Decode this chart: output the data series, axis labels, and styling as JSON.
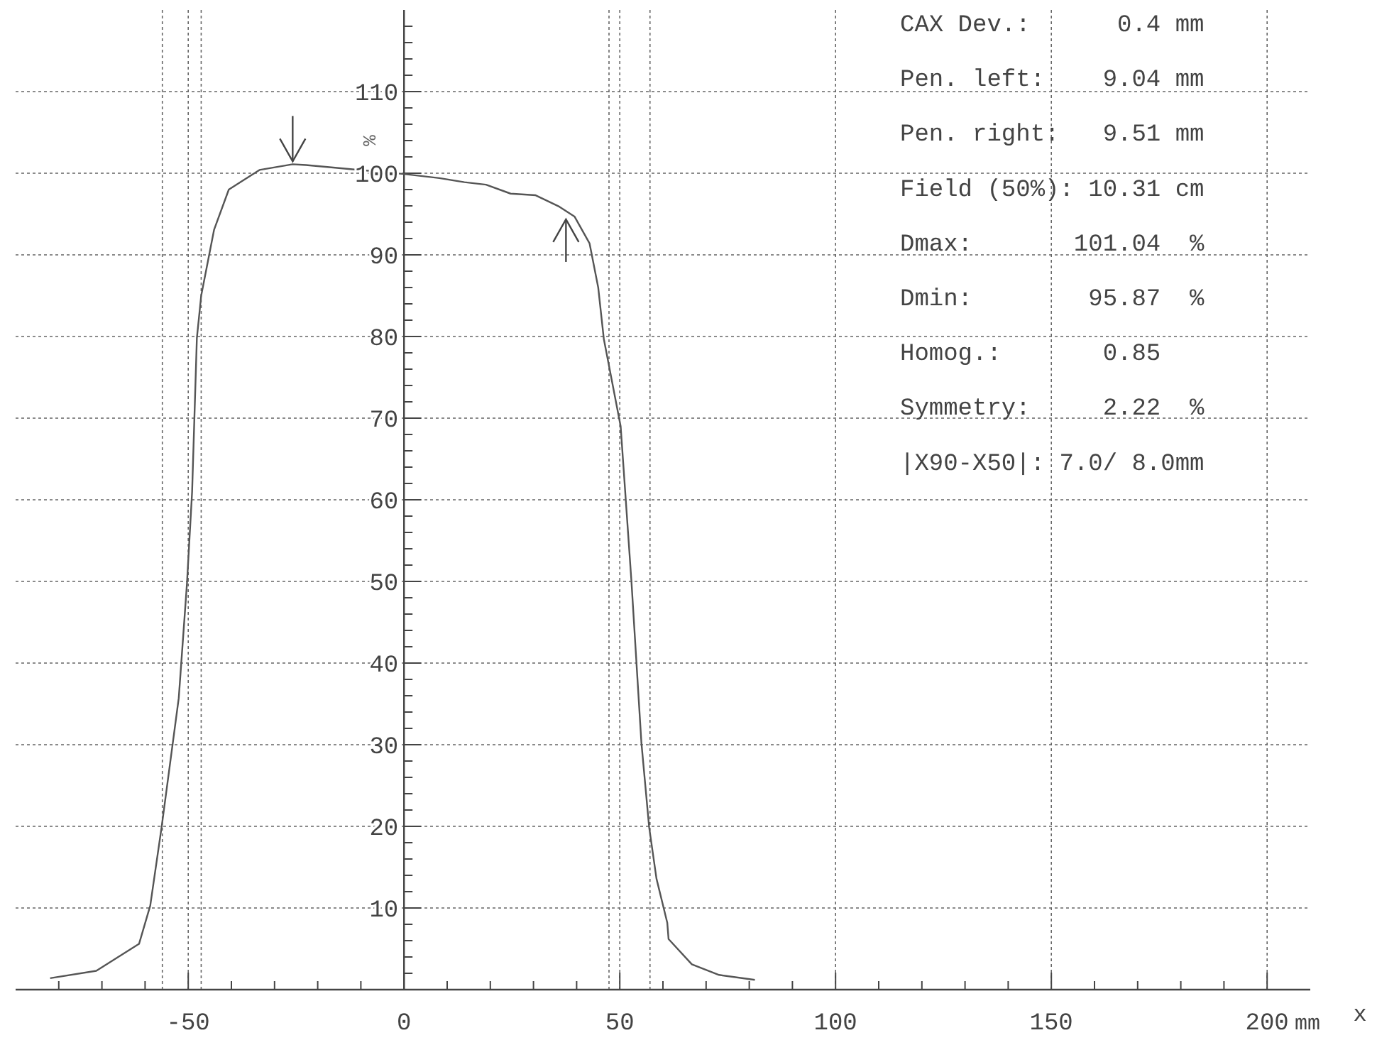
{
  "chart_data": {
    "type": "line",
    "xlabel": "x",
    "ylabel": "%",
    "x": [
      -82,
      -71.3,
      -61.4,
      -58.8,
      -56.2,
      -52.2,
      -50.3,
      -49.1,
      -48,
      -47,
      -44,
      -40.6,
      -33.5,
      -25.8,
      -22.7,
      -16.4,
      0,
      8.2,
      14,
      19,
      24.7,
      30.5,
      36,
      39.5,
      43,
      45,
      46.3,
      50.2,
      52.7,
      55,
      56.8,
      58.5,
      61,
      61.3,
      66.7,
      73,
      81.3
    ],
    "series": [
      {
        "color": "#555555",
        "values": [
          1.4,
          2.3,
          5.6,
          10.3,
          19.8,
          35.7,
          49.7,
          61,
          79.8,
          85,
          93.1,
          98,
          100.4,
          101.1,
          101,
          100.7,
          99.9,
          99.4,
          98.9,
          98.6,
          97.5,
          97.3,
          95.9,
          94.7,
          91.4,
          86,
          79.7,
          69,
          50,
          30.3,
          19.9,
          13.6,
          8.2,
          6.2,
          3.1,
          1.8,
          1.2
        ]
      }
    ],
    "xlim": [
      -90,
      210
    ],
    "ylim": [
      0,
      120
    ],
    "xticks": [
      {
        "value": -80,
        "label": null
      },
      {
        "value": -70,
        "label": null
      },
      {
        "value": -60,
        "label": null
      },
      -50,
      {
        "value": -40,
        "label": null
      },
      {
        "value": -30,
        "label": null
      },
      {
        "value": -20,
        "label": null
      },
      {
        "value": -10,
        "label": null
      },
      0,
      {
        "value": 10,
        "label": null
      },
      {
        "value": 20,
        "label": null
      },
      {
        "value": 30,
        "label": null
      },
      {
        "value": 40,
        "label": null
      },
      50,
      {
        "value": 60,
        "label": null
      },
      {
        "value": 70,
        "label": null
      },
      {
        "value": 80,
        "label": null
      },
      {
        "value": 90,
        "label": null
      },
      100,
      {
        "value": 110,
        "label": null
      },
      {
        "value": 120,
        "label": null
      },
      {
        "value": 130,
        "label": null
      },
      {
        "value": 140,
        "label": null
      },
      150,
      {
        "value": 160,
        "label": null
      },
      {
        "value": 170,
        "label": null
      },
      {
        "value": 180,
        "label": null
      },
      {
        "value": 190,
        "label": null
      },
      200
    ],
    "yticks": [
      {
        "value": 2,
        "label": null
      },
      {
        "value": 4,
        "label": null
      },
      {
        "value": 6,
        "label": null
      },
      {
        "value": 8,
        "label": null
      },
      10,
      {
        "value": 12,
        "label": null
      },
      {
        "value": 14,
        "label": null
      },
      {
        "value": 16,
        "label": null
      },
      {
        "value": 18,
        "label": null
      },
      20,
      {
        "value": 22,
        "label": null
      },
      {
        "value": 24,
        "label": null
      },
      {
        "value": 26,
        "label": null
      },
      {
        "value": 28,
        "label": null
      },
      30,
      {
        "value": 32,
        "label": null
      },
      {
        "value": 34,
        "label": null
      },
      {
        "value": 36,
        "label": null
      },
      {
        "value": 38,
        "label": null
      },
      40,
      {
        "value": 42,
        "label": null
      },
      {
        "value": 44,
        "label": null
      },
      {
        "value": 46,
        "label": null
      },
      {
        "value": 48,
        "label": null
      },
      50,
      {
        "value": 52,
        "label": null
      },
      {
        "value": 54,
        "label": null
      },
      {
        "value": 56,
        "label": null
      },
      {
        "value": 58,
        "label": null
      },
      60,
      {
        "value": 62,
        "label": null
      },
      {
        "value": 64,
        "label": null
      },
      {
        "value": 66,
        "label": null
      },
      {
        "value": 68,
        "label": null
      },
      70,
      {
        "value": 72,
        "label": null
      },
      {
        "value": 74,
        "label": null
      },
      {
        "value": 76,
        "label": null
      },
      {
        "value": 78,
        "label": null
      },
      80,
      {
        "value": 82,
        "label": null
      },
      {
        "value": 84,
        "label": null
      },
      {
        "value": 86,
        "label": null
      },
      {
        "value": 88,
        "label": null
      },
      90,
      {
        "value": 92,
        "label": null
      },
      {
        "value": 94,
        "label": null
      },
      {
        "value": 96,
        "label": null
      },
      {
        "value": 98,
        "label": null
      },
      100,
      {
        "value": 102,
        "label": null
      },
      {
        "value": 104,
        "label": null
      },
      {
        "value": 106,
        "label": null
      },
      {
        "value": 108,
        "label": null
      },
      110,
      {
        "value": 112,
        "label": null
      },
      {
        "value": 114,
        "label": null
      },
      {
        "value": 116,
        "label": null
      },
      {
        "value": 118,
        "label": null
      }
    ],
    "grid": true,
    "marker": "none",
    "line_style": "solid",
    "ref_lines": [
      {
        "axis": "x",
        "value": -56,
        "line_style": "dotted"
      },
      {
        "axis": "x",
        "value": -47,
        "line_style": "dotted"
      },
      {
        "axis": "x",
        "value": 47.5,
        "line_style": "dotted"
      },
      {
        "axis": "x",
        "value": 57,
        "line_style": "dotted"
      }
    ],
    "annotations": [
      "CAX Dev.:      0.4 mm",
      "Pen. left:    9.04 mm",
      "Pen. right:   9.51 mm",
      "Field (50%): 10.31 cm",
      "Dmax:       101.04  %",
      "Dmin:        95.87  %",
      "Homog.:       0.85",
      "Symmetry:     2.22  %",
      "|X90-X50|: 7.0/ 8.0mm",
      "mm"
    ]
  }
}
